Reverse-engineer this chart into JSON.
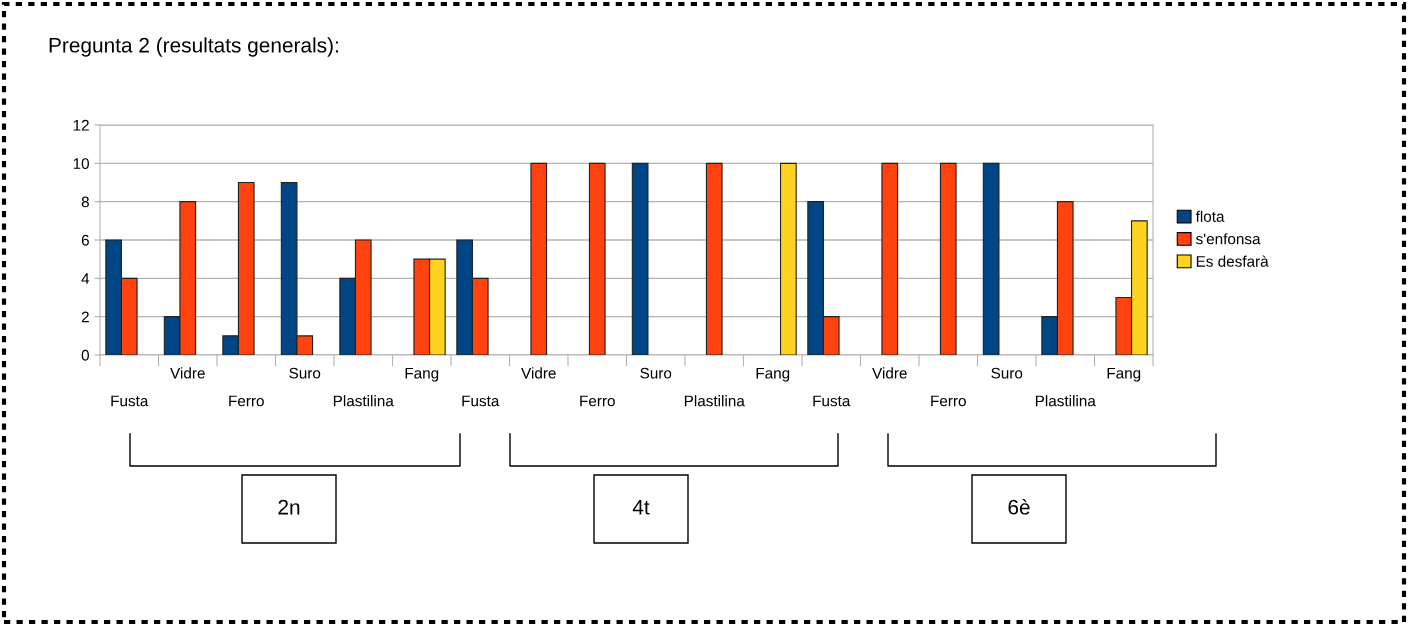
{
  "chart_data": {
    "type": "bar",
    "title": "Pregunta 2 (resultats generals):",
    "categories": [
      "Fusta",
      "Vidre",
      "Ferro",
      "Suro",
      "Plastilina",
      "Fang",
      "Fusta",
      "Vidre",
      "Ferro",
      "Suro",
      "Plastilina",
      "Fang",
      "Fusta",
      "Vidre",
      "Ferro",
      "Suro",
      "Plastilina",
      "Fang"
    ],
    "series": [
      {
        "name": "flota",
        "color": "#004586",
        "values": [
          6,
          2,
          1,
          9,
          4,
          null,
          6,
          null,
          null,
          10,
          null,
          null,
          8,
          null,
          null,
          10,
          2,
          null
        ]
      },
      {
        "name": "s'enfonsa",
        "color": "#ff420e",
        "values": [
          4,
          8,
          9,
          1,
          6,
          5,
          4,
          10,
          10,
          null,
          10,
          null,
          2,
          10,
          10,
          null,
          8,
          3
        ]
      },
      {
        "name": "Es desfarà",
        "color": "#ffd320",
        "values": [
          null,
          null,
          null,
          null,
          null,
          5,
          null,
          null,
          null,
          null,
          null,
          10,
          null,
          null,
          null,
          null,
          null,
          7
        ]
      }
    ],
    "ylim": [
      0,
      12
    ],
    "yticks": [
      0,
      2,
      4,
      6,
      8,
      10,
      12
    ],
    "grid": "y",
    "legend": "right",
    "annotations": [
      "2n",
      "4t",
      "6è"
    ]
  }
}
